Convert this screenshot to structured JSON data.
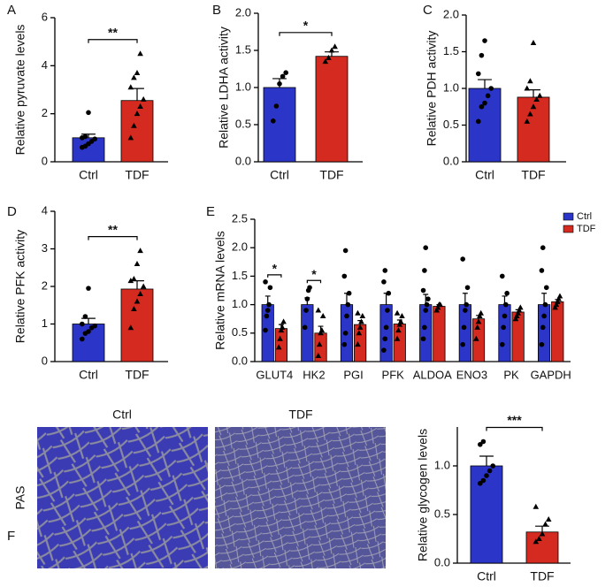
{
  "chart_data": [
    {
      "type": "bar",
      "panel": "A",
      "ylabel": "Relative pyruvate levels",
      "categories": [
        "Ctrl",
        "TDF"
      ],
      "values": [
        1.0,
        2.55
      ],
      "errors": [
        0.15,
        0.5
      ],
      "colors": [
        "#2b35c8",
        "#d42a1f"
      ],
      "points": [
        [
          0.6,
          0.65,
          0.75,
          0.85,
          0.95,
          1.0,
          1.05,
          2.05
        ],
        [
          1.0,
          1.5,
          2.0,
          2.3,
          2.6,
          3.1,
          3.5,
          3.7,
          4.5
        ]
      ],
      "ylim": [
        0,
        6
      ],
      "yticks": [
        0,
        2,
        4,
        6
      ],
      "significance": "**"
    },
    {
      "type": "bar",
      "panel": "B",
      "ylabel": "Relative LDHA activity",
      "categories": [
        "Ctrl",
        "TDF"
      ],
      "values": [
        1.0,
        1.42
      ],
      "errors": [
        0.12,
        0.06
      ],
      "colors": [
        "#2b35c8",
        "#d42a1f"
      ],
      "points": [
        [
          0.55,
          0.75,
          1.05,
          1.15,
          1.2
        ],
        [
          1.35,
          1.4,
          1.5,
          1.55
        ]
      ],
      "ylim": [
        0,
        2
      ],
      "yticks": [
        {
          "value": 0,
          "label": "0.0"
        },
        0.5,
        {
          "value": 1,
          "label": "1.0"
        },
        1.5,
        {
          "value": 2,
          "label": "2.0"
        }
      ],
      "significance": "*"
    },
    {
      "type": "bar",
      "panel": "C",
      "ylabel": "Relative PDH activity",
      "categories": [
        "Ctrl",
        "TDF"
      ],
      "values": [
        1.0,
        0.88
      ],
      "errors": [
        0.12,
        0.1
      ],
      "colors": [
        "#2b35c8",
        "#d42a1f"
      ],
      "points": [
        [
          0.55,
          0.75,
          0.8,
          0.9,
          1.0,
          1.2,
          1.45,
          1.65
        ],
        [
          0.55,
          0.65,
          0.75,
          0.85,
          0.9,
          1.0,
          1.1,
          1.62
        ]
      ],
      "ylim": [
        0,
        2
      ],
      "yticks": [
        {
          "value": 0,
          "label": "0.0"
        },
        0.5,
        {
          "value": 1,
          "label": "1.0"
        },
        1.5,
        {
          "value": 2,
          "label": "2.0"
        }
      ]
    },
    {
      "type": "bar",
      "panel": "D",
      "ylabel": "Relative PFK activity",
      "categories": [
        "Ctrl",
        "TDF"
      ],
      "values": [
        1.0,
        1.93
      ],
      "errors": [
        0.15,
        0.22
      ],
      "colors": [
        "#2b35c8",
        "#d42a1f"
      ],
      "points": [
        [
          0.6,
          0.75,
          0.8,
          0.9,
          0.95,
          1.0,
          1.2,
          1.95
        ],
        [
          0.9,
          1.4,
          1.6,
          1.8,
          2.0,
          2.15,
          2.2,
          2.6,
          2.95
        ]
      ],
      "ylim": [
        0,
        4
      ],
      "yticks": [
        0,
        1,
        2,
        3,
        4
      ],
      "significance": "**"
    },
    {
      "type": "grouped-bar",
      "panel": "E",
      "ylabel": "Relative mRNA levels",
      "categories": [
        "GLUT4",
        "HK2",
        "PGI",
        "PFK",
        "ALDOA",
        "ENO3",
        "PK",
        "GAPDH"
      ],
      "series": [
        {
          "name": "Ctrl",
          "color": "#2b35c8",
          "values": [
            1,
            1,
            1,
            1,
            1,
            1,
            1,
            1
          ],
          "errors": [
            0.15,
            0.12,
            0.2,
            0.2,
            0.18,
            0.2,
            0.15,
            0.2
          ],
          "points": [
            [
              0.55,
              0.8,
              0.9,
              1.0,
              1.3,
              1.4
            ],
            [
              0.6,
              0.9,
              1.1,
              1.25,
              1.3
            ],
            [
              0.3,
              0.5,
              0.8,
              1.0,
              1.2,
              1.5,
              1.95
            ],
            [
              0.2,
              0.4,
              0.6,
              0.9,
              1.2,
              1.4,
              1.6
            ],
            [
              0.4,
              0.6,
              0.9,
              1.0,
              1.1,
              1.25,
              1.6,
              2.0
            ],
            [
              0.3,
              0.6,
              0.9,
              1.0,
              1.3,
              1.8
            ],
            [
              0.3,
              0.6,
              0.8,
              1.0,
              1.2,
              1.5
            ],
            [
              0.3,
              0.6,
              0.8,
              1.0,
              1.3,
              1.6,
              2.0
            ]
          ]
        },
        {
          "name": "TDF",
          "color": "#d42a1f",
          "values": [
            0.58,
            0.5,
            0.65,
            0.66,
            0.97,
            0.75,
            0.87,
            1.05
          ],
          "errors": [
            0.07,
            0.12,
            0.07,
            0.07,
            0.03,
            0.06,
            0.04,
            0.04
          ],
          "points": [
            [
              0.25,
              0.4,
              0.55,
              0.6,
              0.7
            ],
            [
              0.1,
              0.3,
              0.5,
              0.55,
              0.8,
              0.9
            ],
            [
              0.3,
              0.5,
              0.6,
              0.7,
              0.8,
              0.85
            ],
            [
              0.4,
              0.55,
              0.65,
              0.7,
              0.8,
              0.85
            ],
            [
              0.9,
              0.95,
              1.0,
              1.0
            ],
            [
              0.4,
              0.6,
              0.7,
              0.8,
              0.85
            ],
            [
              0.75,
              0.8,
              0.85,
              0.9,
              0.95
            ],
            [
              0.95,
              1.0,
              1.05,
              1.1,
              1.15
            ]
          ]
        }
      ],
      "ylim": [
        0,
        2.5
      ],
      "yticks": [
        {
          "value": 0,
          "label": "0.0"
        },
        0.5,
        {
          "value": 1,
          "label": "1.0"
        },
        1.5,
        {
          "value": 2,
          "label": "2.0"
        },
        2.5
      ],
      "significance": [
        "*",
        "*",
        null,
        null,
        null,
        null,
        null,
        null
      ],
      "legend": "top-right"
    },
    {
      "type": "bar",
      "ylabel": "Relative glycogen levels",
      "categories": [
        "Ctrl",
        "TDF"
      ],
      "values": [
        1.0,
        0.32
      ],
      "errors": [
        0.1,
        0.06
      ],
      "colors": [
        "#2b35c8",
        "#d42a1f"
      ],
      "points": [
        [
          0.82,
          0.85,
          0.9,
          0.95,
          1.0,
          1.22,
          1.25
        ],
        [
          0.22,
          0.25,
          0.3,
          0.4,
          0.45,
          0.58
        ]
      ],
      "ylim": [
        0,
        1.4
      ],
      "yticks": [
        {
          "value": 0,
          "label": "0.0"
        },
        0.5,
        {
          "value": 1,
          "label": "1.0"
        }
      ],
      "significance": "***"
    }
  ],
  "histology": {
    "panel": "F",
    "titles": [
      "Ctrl",
      "TDF"
    ],
    "stain": "PAS"
  }
}
